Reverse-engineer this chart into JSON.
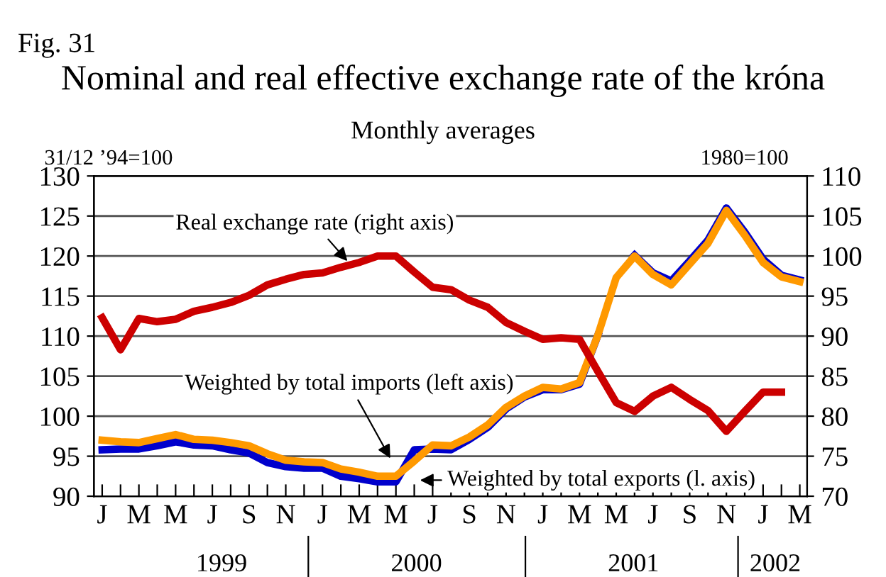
{
  "chart_data": {
    "type": "line",
    "title": "Nominal and real effective exchange rate of the króna",
    "subtitle": "Monthly averages",
    "annotations": [
      "Fig. 31",
      "31/12 ’94=100",
      "1980=100",
      "1999",
      "2000",
      "2001",
      "2002"
    ],
    "categories": [
      "J",
      null,
      "M",
      null,
      "M",
      null,
      "J",
      null,
      "S",
      null,
      "N",
      null,
      "J",
      null,
      "M",
      null,
      "M",
      null,
      "J",
      null,
      "S",
      null,
      "N",
      null,
      "J",
      null,
      "M",
      null,
      "M",
      null,
      "J",
      null,
      "S",
      null,
      "N",
      null,
      "J",
      null,
      "M"
    ],
    "series": [
      {
        "name": "Real exchange rate (right axis)",
        "color": "#cc0000",
        "axis": "y2",
        "values": [
          92.3,
          88.3,
          92.2,
          91.8,
          92.1,
          93.1,
          93.6,
          94.2,
          95.1,
          96.4,
          97.1,
          97.7,
          97.9,
          98.6,
          99.2,
          100,
          100,
          98,
          96.1,
          95.8,
          94.5,
          93.6,
          91.7,
          90.6,
          89.6,
          89.8,
          89.6,
          85.6,
          81.7,
          80.6,
          82.5,
          83.6,
          82.1,
          80.7,
          78.1,
          80.6,
          83,
          83,
          null
        ]
      },
      {
        "name": "Weighted by total exports (l. axis)",
        "color": "#0000cc",
        "values": [
          95.8,
          95.9,
          95.9,
          96.3,
          96.8,
          96.4,
          96.3,
          95.8,
          95.4,
          94.2,
          93.7,
          93.5,
          93.5,
          92.5,
          92.2,
          91.8,
          91.8,
          95.8,
          95.9,
          95.8,
          97.1,
          98.6,
          100.9,
          102.4,
          103.3,
          103.3,
          104.0,
          110.1,
          null,
          120.1,
          117.9,
          116.9,
          119.4,
          122,
          126,
          123,
          119.6,
          117.6,
          117.0
        ]
      },
      {
        "name": "Weighted by total imports (left axis)",
        "color": "#ff9900",
        "values": [
          97.0,
          96.8,
          96.7,
          97.2,
          97.7,
          97.1,
          97.0,
          96.7,
          96.3,
          95.3,
          94.5,
          94.3,
          94.2,
          93.4,
          93.0,
          92.5,
          92.5,
          94.4,
          96.4,
          96.3,
          97.4,
          98.9,
          101.1,
          102.5,
          103.6,
          103.4,
          104.2,
          110.1,
          117.3,
          120,
          117.7,
          116.4,
          119,
          121.6,
          125.7,
          122.6,
          119.2,
          117.4,
          116.8
        ]
      }
    ],
    "ylim": [
      90,
      130
    ],
    "yticks": [
      90,
      95,
      100,
      105,
      110,
      115,
      120,
      125,
      130
    ],
    "y2lim": [
      70,
      110
    ],
    "y2ticks": [
      70,
      75,
      80,
      85,
      90,
      95,
      100,
      105,
      110
    ],
    "grid": "y",
    "legend": false,
    "marker": "none",
    "line_style": "solid"
  }
}
